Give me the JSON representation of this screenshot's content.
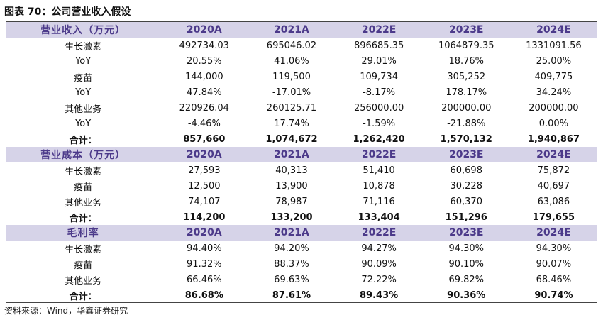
{
  "title": "图表 70：公司营业收入假设",
  "source": "资料来源：Wind，华鑫证券研究",
  "sections": [
    {
      "header": "营业收入（万元）",
      "columns": [
        "2020A",
        "2021A",
        "2022E",
        "2023E",
        "2024E"
      ],
      "rows": [
        {
          "label": "生长激素",
          "values": [
            "492734.03",
            "695046.02",
            "896685.35",
            "1064879.35",
            "1331091.56"
          ],
          "total": false
        },
        {
          "label": "YoY",
          "values": [
            "20.55%",
            "41.06%",
            "29.01%",
            "18.76%",
            "25.00%"
          ],
          "total": false
        },
        {
          "label": "疫苗",
          "values": [
            "144,000",
            "119,500",
            "109,734",
            "305,252",
            "409,775"
          ],
          "total": false
        },
        {
          "label": "YoY",
          "values": [
            "47.84%",
            "-17.01%",
            "-8.17%",
            "178.17%",
            "34.24%"
          ],
          "total": false
        },
        {
          "label": "其他业务",
          "values": [
            "220926.04",
            "260125.71",
            "256000.00",
            "200000.00",
            "200000.00"
          ],
          "total": false
        },
        {
          "label": "YoY",
          "values": [
            "-4.46%",
            "17.74%",
            "-1.59%",
            "-21.88%",
            "0.00%"
          ],
          "total": false
        },
        {
          "label": "合计：",
          "values": [
            "857,660",
            "1,074,672",
            "1,262,420",
            "1,570,132",
            "1,940,867"
          ],
          "total": true
        }
      ]
    },
    {
      "header": "营业成本（万元）",
      "columns": [
        "2020A",
        "2021A",
        "2022E",
        "2023E",
        "2024E"
      ],
      "rows": [
        {
          "label": "生长激素",
          "values": [
            "27,593",
            "40,313",
            "51,410",
            "60,698",
            "75,872"
          ],
          "total": false
        },
        {
          "label": "疫苗",
          "values": [
            "12,500",
            "13,900",
            "10,878",
            "30,228",
            "40,697"
          ],
          "total": false
        },
        {
          "label": "其他业务",
          "values": [
            "74,107",
            "78,987",
            "71,116",
            "60,370",
            "63,086"
          ],
          "total": false
        },
        {
          "label": "合计：",
          "values": [
            "114,200",
            "133,200",
            "133,404",
            "151,296",
            "179,655"
          ],
          "total": true
        }
      ]
    },
    {
      "header": "毛利率",
      "columns": [
        "2020A",
        "2021A",
        "2022E",
        "2023E",
        "2024E"
      ],
      "rows": [
        {
          "label": "生长激素",
          "values": [
            "94.40%",
            "94.20%",
            "94.27%",
            "94.30%",
            "94.30%"
          ],
          "total": false
        },
        {
          "label": "疫苗",
          "values": [
            "91.32%",
            "88.37%",
            "90.09%",
            "90.10%",
            "90.07%"
          ],
          "total": false
        },
        {
          "label": "其他业务",
          "values": [
            "66.46%",
            "69.63%",
            "72.22%",
            "69.82%",
            "68.46%"
          ],
          "total": false
        },
        {
          "label": "合计：",
          "values": [
            "86.68%",
            "87.61%",
            "89.43%",
            "90.36%",
            "90.74%"
          ],
          "total": true
        }
      ]
    }
  ]
}
